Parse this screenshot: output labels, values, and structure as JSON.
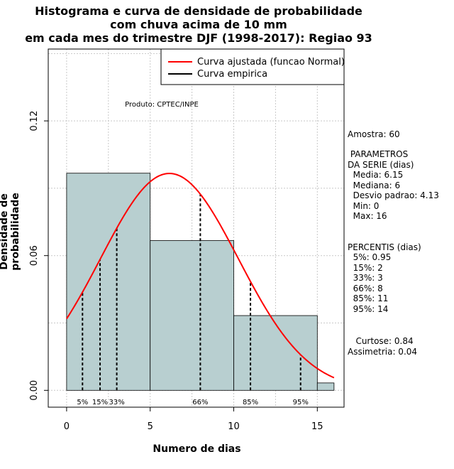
{
  "title_lines": [
    "Histograma e curva de densidade de probabilidade",
    "com chuva acima de 10 mm",
    "em cada mes do trimestre DJF (1998-2017): Regiao 93"
  ],
  "product_label": "Produto: CPTEC/INPE",
  "legend": {
    "fitted": "Curva ajustada (funcao Normal)",
    "empirical": "Curva empirica",
    "fitted_color": "#ff0000",
    "empirical_color": "#000000"
  },
  "side_panel": {
    "sample": "Amostra: 60",
    "params_title_1": " PARAMETROS",
    "params_title_2": "DA SERIE (dias)",
    "mean": "  Media: 6.15",
    "median": "  Mediana: 6",
    "sd": "  Desvio padrao: 4.13",
    "min": "  Min: 0",
    "max": "  Max: 16",
    "percentiles_title": "PERCENTIS (dias)",
    "p5": "  5%: 0.95",
    "p15": "  15%: 2",
    "p33": "  33%: 3",
    "p66": "  66%: 8",
    "p85": "  85%: 11",
    "p95": "  95%: 14",
    "kurtosis": "   Curtose: 0.84",
    "skewness": "Assimetria: 0.04"
  },
  "chart_data": {
    "type": "bar",
    "xlabel": "Numero de dias",
    "ylabel": "Densidade de probabilidade",
    "xlim": [
      -1.1,
      16.6
    ],
    "ylim": [
      -0.0075,
      0.152
    ],
    "x_ticks": [
      0,
      5,
      10,
      15
    ],
    "y_ticks": [
      0.0,
      0.06,
      0.12
    ],
    "y_tick_labels": [
      "0.00",
      "0.06",
      "0.12"
    ],
    "grid": true,
    "legend_position": "top-right",
    "bar_color": "#b8cfd0",
    "histogram": [
      {
        "from": 0,
        "to": 5,
        "density": 0.0967
      },
      {
        "from": 5,
        "to": 10,
        "density": 0.0667
      },
      {
        "from": 10,
        "to": 15,
        "density": 0.0333
      },
      {
        "from": 15,
        "to": 16,
        "density": 0.0033
      }
    ],
    "normal_fit": {
      "mean": 6.15,
      "sd": 4.13,
      "x_range": [
        0,
        16
      ]
    },
    "percentile_markers": [
      {
        "label": "5%",
        "x": 0.95
      },
      {
        "label": "15%",
        "x": 2
      },
      {
        "label": "33%",
        "x": 3
      },
      {
        "label": "66%",
        "x": 8
      },
      {
        "label": "85%",
        "x": 11
      },
      {
        "label": "95%",
        "x": 14
      }
    ]
  }
}
